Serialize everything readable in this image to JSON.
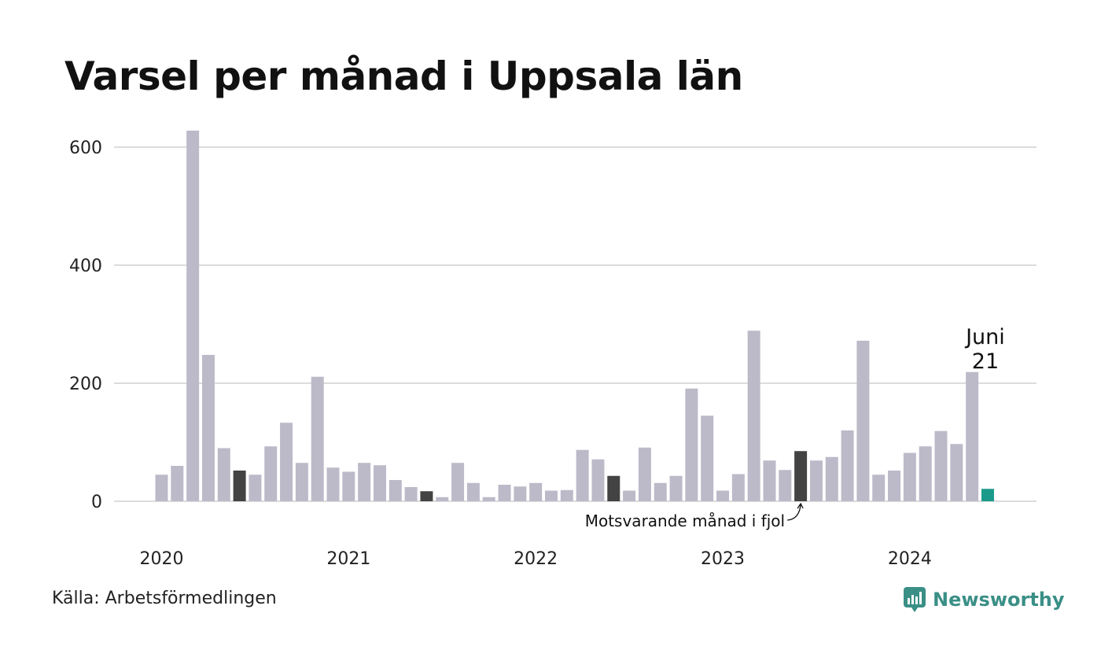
{
  "title": "Varsel per månad i Uppsala län",
  "source": "Källa: Arbetsförmedlingen",
  "brand": "Newsworthy",
  "colors": {
    "regular": "#bcbac9",
    "same_month_prev": "#434343",
    "current": "#1a9a8a",
    "grid": "#dcdcdc",
    "brand": "#3a8f86"
  },
  "chart_data": {
    "type": "bar",
    "ylim": [
      0,
      640
    ],
    "yticks": [
      0,
      200,
      400,
      600
    ],
    "xticks": [
      "2020",
      "2021",
      "2022",
      "2023",
      "2024"
    ],
    "grid": true,
    "series": [
      {
        "values": [
          45,
          60,
          628,
          248,
          90,
          52,
          45,
          93,
          133,
          65,
          211,
          57,
          50,
          65,
          61,
          36,
          24,
          17,
          7,
          65,
          31,
          7,
          28,
          25,
          31,
          18,
          19,
          87,
          71,
          43,
          18,
          91,
          31,
          43,
          191,
          145,
          18,
          46,
          289,
          69,
          53,
          85,
          69,
          75,
          120,
          272,
          45,
          52,
          82,
          93,
          119,
          97,
          219,
          21
        ]
      }
    ],
    "highlighted_indices": [
      5,
      17,
      29,
      41
    ],
    "current_index": 53,
    "annotation": "Motsvarande månad i fjol",
    "callout_month": "Juni",
    "callout_value": "21"
  }
}
